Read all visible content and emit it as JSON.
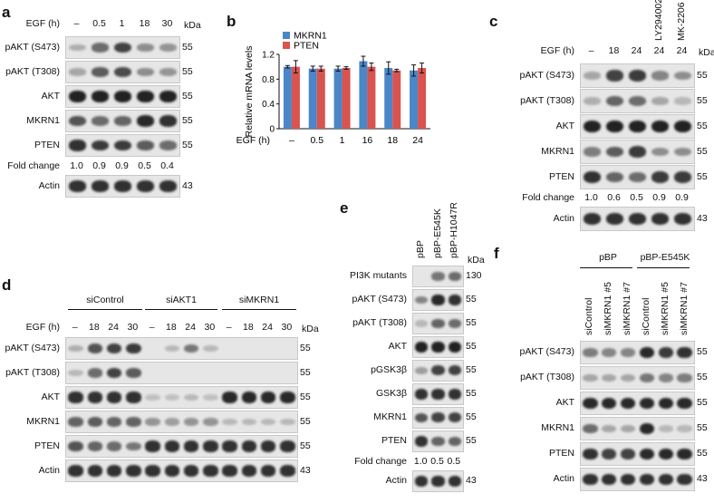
{
  "panels": {
    "a": {
      "label": "a",
      "cond_label": "EGF (h)",
      "lanes": [
        "–",
        "0.5",
        "1",
        "18",
        "30"
      ],
      "kda": "kDa",
      "rows": [
        {
          "name": "pAKT (S473)",
          "kda": "55",
          "bands": [
            0.15,
            0.55,
            0.8,
            0.35,
            0.3
          ]
        },
        {
          "name": "pAKT (T308)",
          "kda": "55",
          "bands": [
            0.2,
            0.65,
            0.75,
            0.35,
            0.3
          ]
        },
        {
          "name": "AKT",
          "kda": "55",
          "bands": [
            1,
            1,
            1,
            1,
            1
          ]
        },
        {
          "name": "MKRN1",
          "kda": "55",
          "bands": [
            0.7,
            0.55,
            0.6,
            0.95,
            0.9
          ]
        },
        {
          "name": "PTEN",
          "kda": "55",
          "bands": [
            0.9,
            0.85,
            0.85,
            0.65,
            0.55
          ]
        }
      ],
      "fold_label": "Fold change",
      "fold": [
        "1.0",
        "0.9",
        "0.9",
        "0.5",
        "0.4"
      ],
      "actin": {
        "name": "Actin",
        "kda": "43"
      }
    },
    "b": {
      "label": "b"
    },
    "c": {
      "label": "c",
      "inhibitors": [
        "LY294002",
        "MK-2206"
      ],
      "cond_label": "EGF (h)",
      "lanes": [
        "–",
        "18",
        "24",
        "24",
        "24"
      ],
      "kda": "kDa",
      "rows": [
        {
          "name": "pAKT (S473)",
          "kda": "55",
          "bands": [
            0.2,
            0.8,
            0.85,
            0.4,
            0.35
          ]
        },
        {
          "name": "pAKT (T308)",
          "kda": "55",
          "bands": [
            0.15,
            0.6,
            0.55,
            0.2,
            0.1
          ]
        },
        {
          "name": "AKT",
          "kda": "55",
          "bands": [
            1,
            1,
            1,
            1,
            1
          ]
        },
        {
          "name": "MKRN1",
          "kda": "55",
          "bands": [
            0.45,
            0.65,
            0.85,
            0.35,
            0.35
          ]
        },
        {
          "name": "PTEN",
          "kda": "55",
          "bands": [
            0.9,
            0.6,
            0.55,
            0.85,
            0.85
          ]
        }
      ],
      "fold_label": "Fold change",
      "fold": [
        "1.0",
        "0.6",
        "0.5",
        "0.9",
        "0.9"
      ],
      "actin": {
        "name": "Actin",
        "kda": "43"
      }
    },
    "d": {
      "label": "d",
      "groups": [
        "siControl",
        "siAKT1",
        "siMKRN1"
      ],
      "cond_label": "EGF (h)",
      "lanes": [
        "–",
        "18",
        "24",
        "30",
        "–",
        "18",
        "24",
        "30",
        "–",
        "18",
        "24",
        "30"
      ],
      "kda": "kDa",
      "rows": [
        {
          "name": "pAKT (S473)",
          "kda": "55",
          "bands": [
            0.15,
            0.7,
            0.8,
            0.85,
            0,
            0.1,
            0.5,
            0.1,
            0,
            0,
            0,
            0
          ]
        },
        {
          "name": "pAKT (T308)",
          "kda": "55",
          "bands": [
            0.1,
            0.55,
            0.8,
            0.65,
            0,
            0,
            0,
            0,
            0,
            0,
            0,
            0
          ]
        },
        {
          "name": "AKT",
          "kda": "55",
          "bands": [
            0.9,
            0.9,
            0.9,
            0.9,
            0.05,
            0.05,
            0.1,
            0.05,
            0.95,
            0.95,
            0.95,
            0.95
          ]
        },
        {
          "name": "MKRN1",
          "kda": "55",
          "bands": [
            0.6,
            0.65,
            0.6,
            0.6,
            0.3,
            0.25,
            0.3,
            0.3,
            0.1,
            0.1,
            0.1,
            0.1
          ]
        },
        {
          "name": "PTEN",
          "kda": "55",
          "bands": [
            0.7,
            0.6,
            0.55,
            0.5,
            0.9,
            0.9,
            0.9,
            0.9,
            0.9,
            0.9,
            0.9,
            0.9
          ]
        }
      ],
      "actin": {
        "name": "Actin",
        "kda": "43"
      }
    },
    "e": {
      "label": "e",
      "lanes": [
        "pBP",
        "pBP-E545K",
        "pBP-H1047R"
      ],
      "kda": "kDa",
      "rows": [
        {
          "name": "PI3K mutants",
          "kda": "130",
          "bands": [
            0,
            0.5,
            0.55
          ]
        },
        {
          "name": "pAKT (S473)",
          "kda": "55",
          "bands": [
            0.4,
            0.95,
            0.9
          ]
        },
        {
          "name": "pAKT (T308)",
          "kda": "55",
          "bands": [
            0.1,
            0.6,
            0.55
          ]
        },
        {
          "name": "AKT",
          "kda": "55",
          "bands": [
            1,
            1,
            1
          ]
        },
        {
          "name": "pGSK3β",
          "kda": "55",
          "bands": [
            0.25,
            0.8,
            0.8
          ]
        },
        {
          "name": "GSK3β",
          "kda": "55",
          "bands": [
            0.9,
            0.9,
            0.9
          ]
        },
        {
          "name": "MKRN1",
          "kda": "55",
          "bands": [
            0.7,
            0.8,
            0.8
          ]
        },
        {
          "name": "PTEN",
          "kda": "55",
          "bands": [
            0.9,
            0.6,
            0.6
          ]
        }
      ],
      "fold_label": "Fold change",
      "fold": [
        "1.0",
        "0.5",
        "0.5"
      ],
      "actin": {
        "name": "Actin",
        "kda": "43"
      }
    },
    "f": {
      "label": "f",
      "groups": [
        "pBP",
        "pBP-E545K"
      ],
      "lanes": [
        "siControl",
        "siMKRN1 #5",
        "siMKRN1 #7",
        "siControl",
        "siMKRN1 #5",
        "siMKRN1 #7"
      ],
      "kda": "kDa",
      "rows": [
        {
          "name": "pAKT (S473)",
          "kda": "55",
          "bands": [
            0.45,
            0.4,
            0.4,
            0.95,
            0.85,
            0.9
          ]
        },
        {
          "name": "pAKT (T308)",
          "kda": "55",
          "bands": [
            0.2,
            0.2,
            0.2,
            0.5,
            0.4,
            0.45
          ]
        },
        {
          "name": "AKT",
          "kda": "55",
          "bands": [
            0.95,
            0.95,
            0.95,
            0.95,
            0.95,
            0.95
          ]
        },
        {
          "name": "MKRN1",
          "kda": "55",
          "bands": [
            0.55,
            0.2,
            0.2,
            0.95,
            0.1,
            0.1
          ]
        },
        {
          "name": "PTEN",
          "kda": "55",
          "bands": [
            0.9,
            0.8,
            0.8,
            0.95,
            0.95,
            0.95
          ]
        }
      ],
      "actin": {
        "name": "Actin",
        "kda": "43"
      }
    }
  },
  "chart_data": {
    "type": "bar",
    "categories": [
      "–",
      "0.5",
      "1",
      "16",
      "18",
      "24"
    ],
    "xlabel": "EGF (h)",
    "ylabel": "Relative mRNA levels",
    "ylim": [
      0,
      1.2
    ],
    "yticks": [
      "0",
      "0.4",
      "0.8",
      "1.2"
    ],
    "series": [
      {
        "name": "MKRN1",
        "color": "#4a86c8",
        "values": [
          1.0,
          0.97,
          0.97,
          1.09,
          0.98,
          0.94
        ],
        "errors": [
          0.02,
          0.04,
          0.04,
          0.08,
          0.1,
          0.09
        ]
      },
      {
        "name": "PTEN",
        "color": "#d9534f",
        "values": [
          1.0,
          0.97,
          0.98,
          1.0,
          0.94,
          0.98
        ],
        "errors": [
          0.1,
          0.04,
          0.02,
          0.06,
          0.02,
          0.08
        ]
      }
    ]
  }
}
